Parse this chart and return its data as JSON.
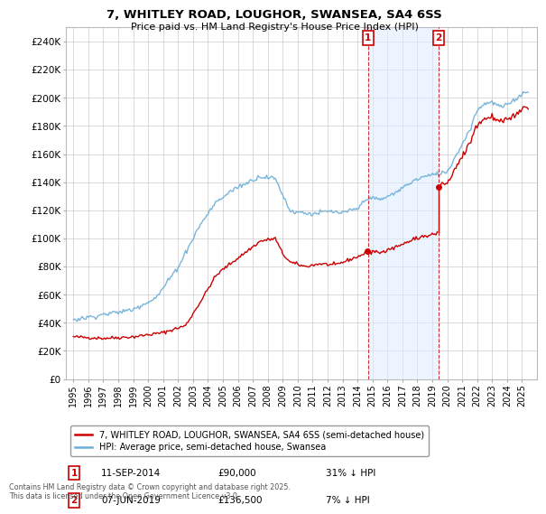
{
  "title": "7, WHITLEY ROAD, LOUGHOR, SWANSEA, SA4 6SS",
  "subtitle": "Price paid vs. HM Land Registry's House Price Index (HPI)",
  "legend_line1": "7, WHITLEY ROAD, LOUGHOR, SWANSEA, SA4 6SS (semi-detached house)",
  "legend_line2": "HPI: Average price, semi-detached house, Swansea",
  "annotation1_label": "1",
  "annotation1_date": "11-SEP-2014",
  "annotation1_price": "£90,000",
  "annotation1_hpi": "31% ↓ HPI",
  "annotation2_label": "2",
  "annotation2_date": "07-JUN-2019",
  "annotation2_price": "£136,500",
  "annotation2_hpi": "7% ↓ HPI",
  "sale1_year": 2014.7,
  "sale1_price": 90000,
  "sale2_year": 2019.43,
  "sale2_price": 136500,
  "hpi_color": "#6baed6",
  "property_color": "#cc0000",
  "vline_color": "#cc0000",
  "shading_color": "#ddeeff",
  "annotation_box_color": "#cc0000",
  "background_color": "#ffffff",
  "grid_color": "#cccccc",
  "ylim": [
    0,
    250000
  ],
  "yticks": [
    0,
    20000,
    40000,
    60000,
    80000,
    100000,
    120000,
    140000,
    160000,
    180000,
    200000,
    220000,
    240000
  ],
  "xlim_start": 1994.5,
  "xlim_end": 2026.0,
  "footer_text": "Contains HM Land Registry data © Crown copyright and database right 2025.\nThis data is licensed under the Open Government Licence v3.0."
}
